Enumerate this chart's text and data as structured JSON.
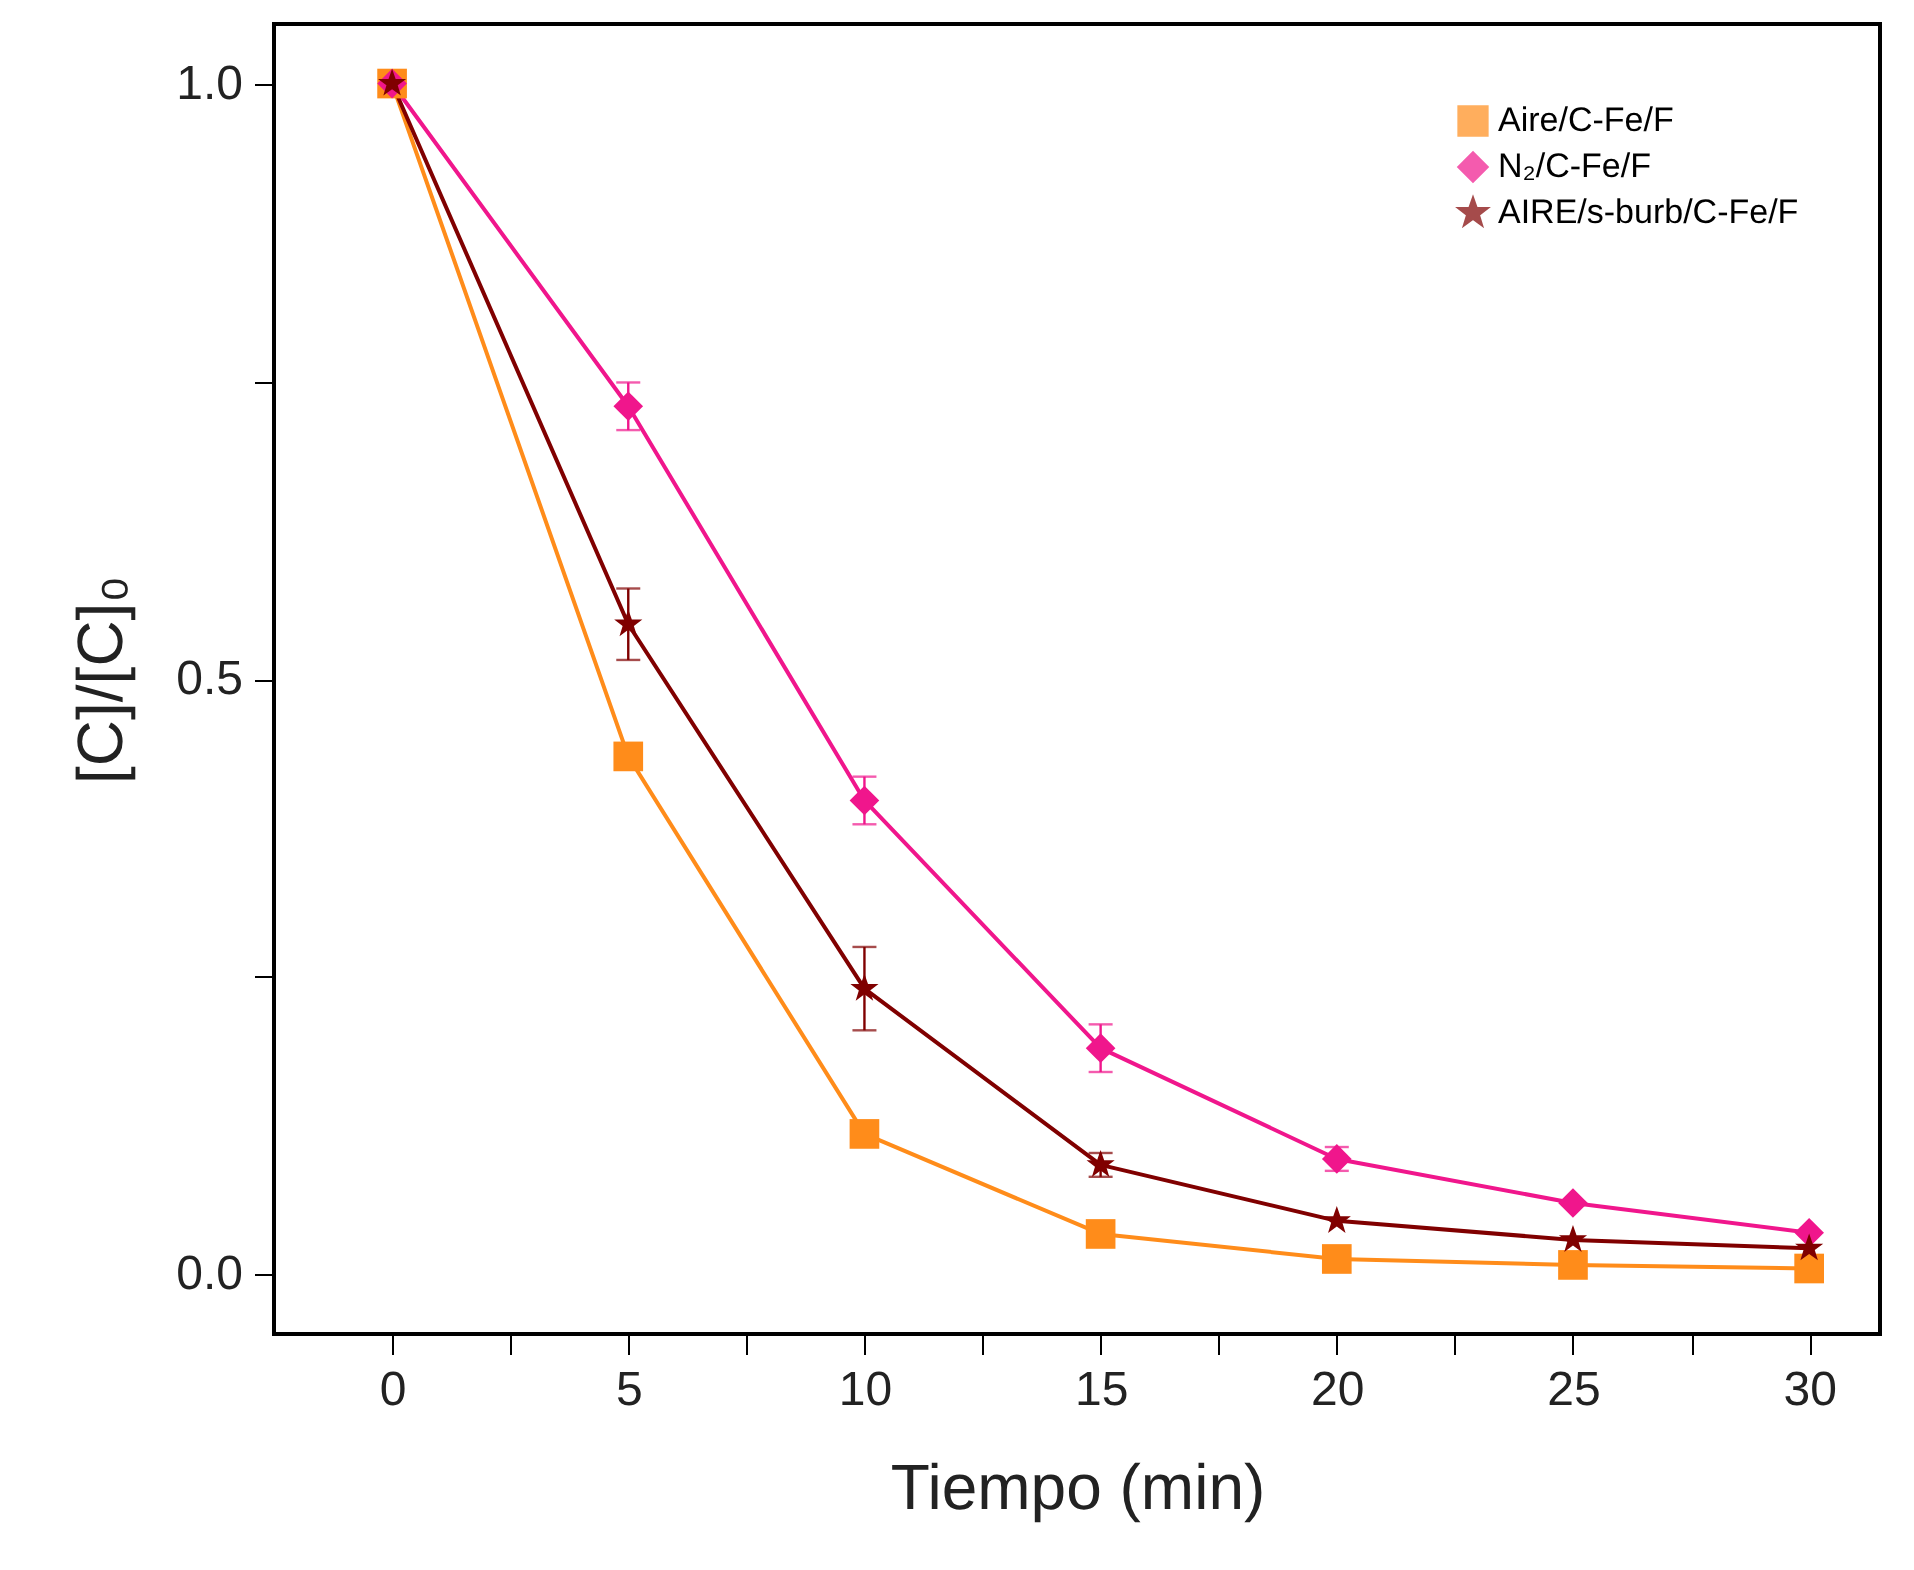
{
  "chart_data": {
    "type": "line",
    "xlabel": "Tiempo (min)",
    "ylabel": "[C]/[C]₀",
    "x": [
      0,
      5,
      10,
      15,
      20,
      25,
      30
    ],
    "xlim": [
      -2.5,
      31.5
    ],
    "ylim": [
      -0.05,
      1.05
    ],
    "xticks": [
      0,
      {
        "value": 2.5,
        "label": null
      },
      5,
      {
        "value": 7.5,
        "label": null
      },
      10,
      {
        "value": 12.5,
        "label": null
      },
      15,
      {
        "value": 17.5,
        "label": null
      },
      20,
      {
        "value": 22.5,
        "label": null
      },
      25,
      {
        "value": 27.5,
        "label": null
      },
      30
    ],
    "yticks": [
      {
        "value": 0,
        "label": "0.0"
      },
      {
        "value": 0.25,
        "label": null
      },
      {
        "value": 0.5,
        "label": "0.5"
      },
      {
        "value": 0.75,
        "label": null
      },
      {
        "value": 1,
        "label": "1.0"
      }
    ],
    "legend": "top right",
    "grid": false,
    "series": [
      {
        "name": "Aire/C-Fe/F",
        "color": "#ff8c1a",
        "marker": "square",
        "values": [
          1,
          0.435,
          0.118,
          0.034,
          0.013,
          0.008,
          0.005
        ]
      },
      {
        "name": "N₂/C-Fe/F",
        "color": "#f0168c",
        "marker": "diamond",
        "values": [
          1,
          0.729,
          0.398,
          0.19,
          0.097,
          0.06,
          0.035
        ],
        "errors": [
          null,
          0.02,
          0.02,
          0.02,
          0.01,
          null,
          null
        ]
      },
      {
        "name": "AIRE/s-burb/C-Fe/F",
        "color": "#800000",
        "marker": "star",
        "values": [
          1,
          0.546,
          0.24,
          0.092,
          0.045,
          0.029,
          0.022
        ],
        "errors": [
          null,
          0.03,
          0.035,
          0.01,
          null,
          null,
          null
        ]
      }
    ]
  }
}
